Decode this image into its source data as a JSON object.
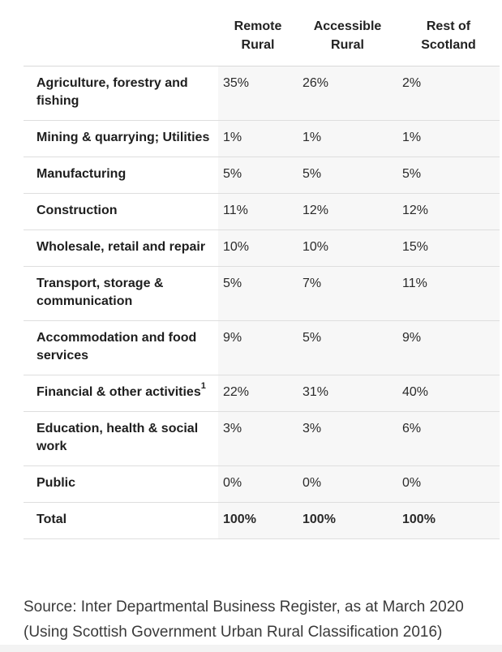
{
  "table": {
    "headers": {
      "remote": [
        "Remote",
        "Rural"
      ],
      "accessible": [
        "Accessible",
        "Rural"
      ],
      "rest": [
        "Rest of",
        "Scotland"
      ]
    },
    "rows": [
      {
        "label": "Agriculture, forestry and fishing",
        "remote": "35%",
        "accessible": "26%",
        "rest": "2%"
      },
      {
        "label": "Mining & quarrying; Utilities",
        "remote": "1%",
        "accessible": "1%",
        "rest": "1%"
      },
      {
        "label": "Manufacturing",
        "remote": "5%",
        "accessible": "5%",
        "rest": "5%"
      },
      {
        "label": "Construction",
        "remote": "11%",
        "accessible": "12%",
        "rest": "12%"
      },
      {
        "label": "Wholesale, retail and repair",
        "remote": "10%",
        "accessible": "10%",
        "rest": "15%"
      },
      {
        "label": "Transport, storage & communication",
        "remote": "5%",
        "accessible": "7%",
        "rest": "11%"
      },
      {
        "label": "Accommodation and food services",
        "remote": "9%",
        "accessible": "5%",
        "rest": "9%"
      },
      {
        "label": "Financial & other activities",
        "footnote": "1",
        "remote": "22%",
        "accessible": "31%",
        "rest": "40%"
      },
      {
        "label": "Education, health & social work",
        "remote": "3%",
        "accessible": "3%",
        "rest": "6%"
      },
      {
        "label": "Public",
        "remote": "0%",
        "accessible": "0%",
        "rest": "0%"
      }
    ],
    "total": {
      "label": "Total",
      "remote": "100%",
      "accessible": "100%",
      "rest": "100%"
    }
  },
  "source": {
    "line1": "Source: Inter Departmental Business Register, as at March 2020",
    "line2": "(Using Scottish Government Urban Rural Classification 2016)"
  }
}
